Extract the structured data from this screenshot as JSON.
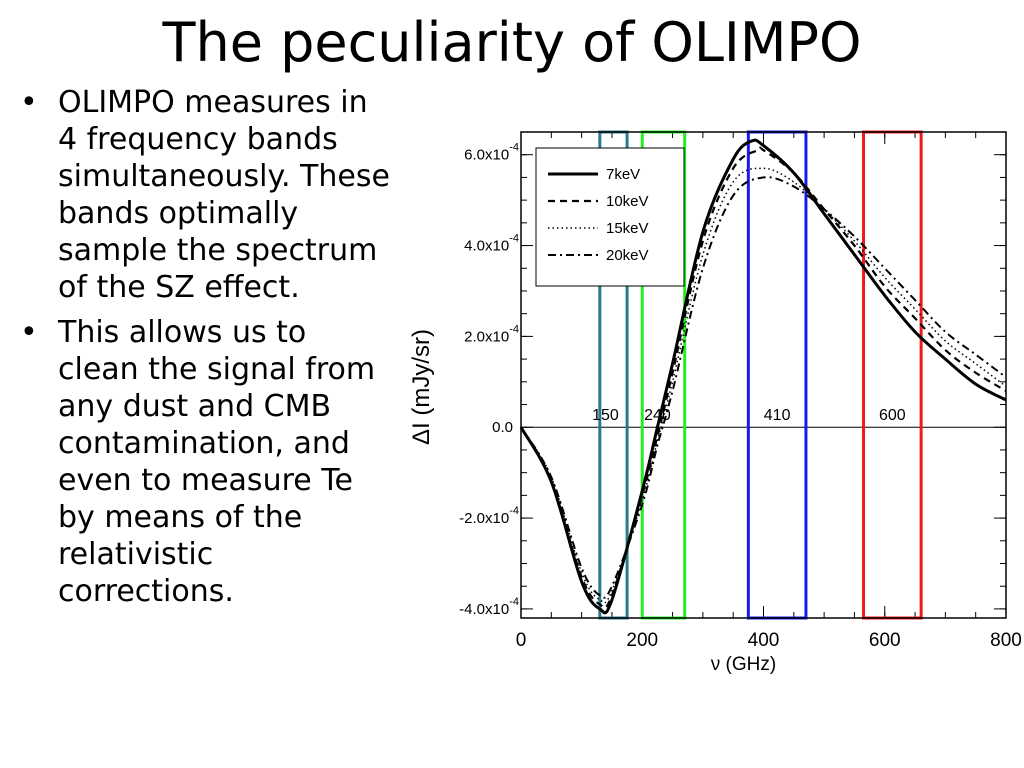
{
  "slide": {
    "title": "The peculiarity of OLIMPO",
    "bullets": [
      "OLIMPO measures in 4 frequency bands simultaneously. These bands optimally sample the spectrum of the SZ effect.",
      "This allows us to clean the signal from any dust and CMB contamination, and even to measure Te by means of the relativistic corrections."
    ]
  },
  "chart_data": {
    "type": "line",
    "xlabel": "ν (GHz)",
    "ylabel": "ΔI (mJy/sr)",
    "xlim": [
      0,
      800
    ],
    "ylim": [
      -0.00042,
      0.00065
    ],
    "x_ticks": [
      0,
      200,
      400,
      600,
      800
    ],
    "x_tick_labels": [
      "0",
      "200",
      "400",
      "600",
      "800"
    ],
    "y_ticks": [
      -0.0004,
      -0.0002,
      0,
      0.0002,
      0.0004,
      0.0006
    ],
    "y_tick_labels": [
      {
        "mant": "-4.0x10",
        "exp": "-4"
      },
      {
        "mant": "-2.0x10",
        "exp": "-4"
      },
      {
        "mant": "0.0",
        "exp": ""
      },
      {
        "mant": "2.0x10",
        "exp": "-4"
      },
      {
        "mant": "4.0x10",
        "exp": "-4"
      },
      {
        "mant": "6.0x10",
        "exp": "-4"
      }
    ],
    "legend_position": "top-left",
    "series": [
      {
        "name": "7keV",
        "style": "solid",
        "x": [
          0,
          50,
          100,
          130,
          150,
          200,
          225,
          250,
          300,
          350,
          380,
          400,
          450,
          500,
          550,
          600,
          650,
          700,
          750,
          800
        ],
        "y": [
          0,
          -0.00012,
          -0.00034,
          -0.0004,
          -0.00038,
          -0.00014,
          0,
          0.00014,
          0.00043,
          0.00059,
          0.00063,
          0.00062,
          0.00056,
          0.00047,
          0.00038,
          0.00029,
          0.00021,
          0.00015,
          9.5e-05,
          6e-05
        ]
      },
      {
        "name": "10keV",
        "style": "dashed",
        "x": [
          0,
          50,
          100,
          130,
          150,
          200,
          225,
          250,
          300,
          350,
          390,
          400,
          450,
          500,
          550,
          600,
          650,
          700,
          750,
          800
        ],
        "y": [
          0,
          -0.00012,
          -0.00033,
          -0.00039,
          -0.00037,
          -0.00015,
          -2e-05,
          0.00012,
          0.00041,
          0.00057,
          0.00061,
          0.00061,
          0.00056,
          0.00048,
          0.0004,
          0.00031,
          0.00024,
          0.00017,
          0.00012,
          8e-05
        ]
      },
      {
        "name": "15keV",
        "style": "dotted",
        "x": [
          0,
          50,
          100,
          130,
          150,
          200,
          225,
          250,
          300,
          350,
          400,
          450,
          500,
          550,
          600,
          650,
          700,
          750,
          800
        ],
        "y": [
          0,
          -0.00011,
          -0.00032,
          -0.00038,
          -0.00036,
          -0.00016,
          -3e-05,
          0.0001,
          0.00038,
          0.00054,
          0.00057,
          0.00054,
          0.00048,
          0.00041,
          0.00033,
          0.00026,
          0.00019,
          0.00014,
          9e-05
        ]
      },
      {
        "name": "20keV",
        "style": "dashdot",
        "x": [
          0,
          50,
          100,
          130,
          150,
          200,
          225,
          250,
          300,
          350,
          400,
          450,
          500,
          550,
          600,
          650,
          700,
          750,
          800
        ],
        "y": [
          0,
          -0.00011,
          -0.00031,
          -0.00037,
          -0.00035,
          -0.00017,
          -4e-05,
          8e-05,
          0.00035,
          0.00051,
          0.00055,
          0.00053,
          0.00048,
          0.00042,
          0.00035,
          0.00028,
          0.00021,
          0.00016,
          0.00011
        ]
      }
    ],
    "bands": [
      {
        "label": "150",
        "from": 130,
        "to": 175,
        "color": "#2a7a8c"
      },
      {
        "label": "240",
        "from": 200,
        "to": 270,
        "color": "#22ee22"
      },
      {
        "label": "410",
        "from": 375,
        "to": 470,
        "color": "#1a1aee"
      },
      {
        "label": "600",
        "from": 565,
        "to": 660,
        "color": "#ee1a1a"
      }
    ]
  }
}
